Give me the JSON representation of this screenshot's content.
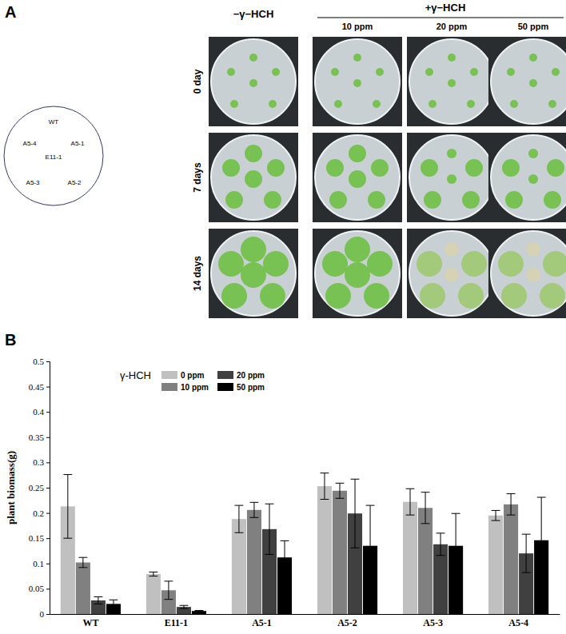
{
  "panel_a": {
    "label": "A",
    "schematic": [
      "WT",
      "A5-4",
      "A5-1",
      "E11-1",
      "A5-3",
      "A5-2"
    ],
    "control": "−γ−HCH",
    "treatment": "+γ−HCH",
    "concentrations": [
      "10 ppm",
      "20 ppm",
      "50 ppm"
    ],
    "timepoints": [
      "0 day",
      "7 days",
      "14 days"
    ]
  },
  "panel_b": {
    "label": "B"
  },
  "chart_data": {
    "type": "bar",
    "y_label": "plant biomass(g)",
    "legend_title": "γ-HCH",
    "legend": "top-left",
    "categories": [
      "WT",
      "E11-1",
      "A5-1",
      "A5-2",
      "A5-3",
      "A5-4"
    ],
    "series": [
      {
        "name": "0 ppm",
        "color": "#c0c0c0",
        "values": [
          0.213,
          0.079,
          0.188,
          0.253,
          0.222,
          0.195
        ],
        "errors": [
          0.063,
          0.004,
          0.027,
          0.026,
          0.026,
          0.01
        ]
      },
      {
        "name": "10 ppm",
        "color": "#808080",
        "values": [
          0.102,
          0.047,
          0.206,
          0.244,
          0.21,
          0.217
        ],
        "errors": [
          0.01,
          0.018,
          0.015,
          0.015,
          0.031,
          0.021
        ]
      },
      {
        "name": "20 ppm",
        "color": "#404040",
        "values": [
          0.027,
          0.014,
          0.168,
          0.199,
          0.138,
          0.12
        ],
        "errors": [
          0.007,
          0.003,
          0.05,
          0.068,
          0.022,
          0.038
        ]
      },
      {
        "name": "50 ppm",
        "color": "#000000",
        "values": [
          0.02,
          0.006,
          0.112,
          0.135,
          0.135,
          0.146
        ],
        "errors": [
          0.008,
          0.001,
          0.033,
          0.08,
          0.064,
          0.085
        ]
      }
    ],
    "ylim": [
      0,
      0.5
    ],
    "yticks": [
      0,
      0.05,
      0.1,
      0.15,
      0.2,
      0.25,
      0.3,
      0.35,
      0.4,
      0.45,
      0.5
    ],
    "grid": false
  }
}
